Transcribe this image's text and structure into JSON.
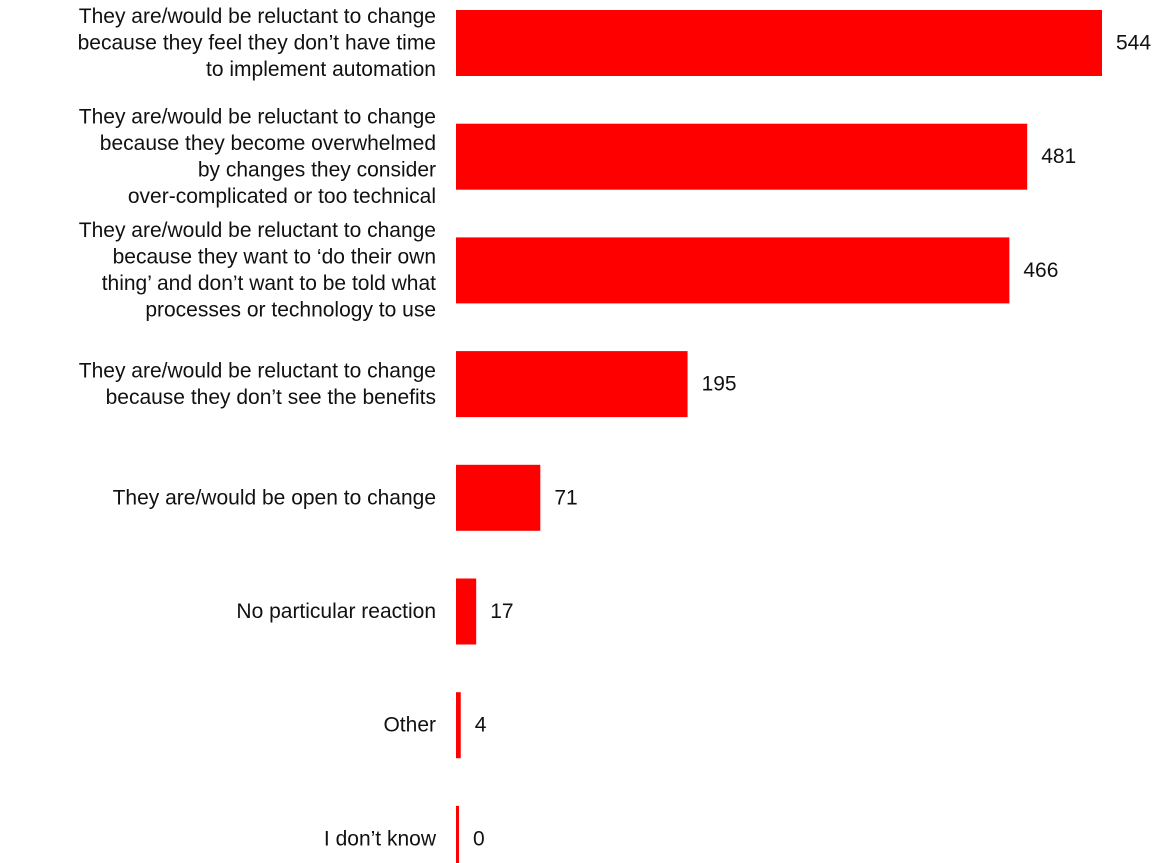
{
  "chart_data": {
    "type": "bar",
    "orientation": "horizontal",
    "bar_color": "#ff0000",
    "categories": [
      [
        "They are/would be reluctant to change",
        "because they feel they don’t have time",
        "to implement automation"
      ],
      [
        "They are/would be reluctant to change",
        "because they become overwhelmed",
        "by changes they consider",
        "over-complicated or too technical"
      ],
      [
        "They are/would be reluctant to change",
        "because they want to ‘do their own",
        "thing’ and don’t want to be told what",
        "processes or technology to use"
      ],
      [
        "They are/would be reluctant to change",
        "because they don’t see the benefits"
      ],
      [
        "They are/would be open to change"
      ],
      [
        "No particular reaction"
      ],
      [
        "Other"
      ],
      [
        "I don’t know"
      ]
    ],
    "values": [
      544,
      481,
      466,
      195,
      71,
      17,
      4,
      0
    ],
    "value_labels": [
      "544",
      "481",
      "466",
      "195",
      "71",
      "17",
      "4",
      "0"
    ],
    "title": "",
    "xlabel": "",
    "ylabel": "",
    "grid": false,
    "legend": false
  }
}
